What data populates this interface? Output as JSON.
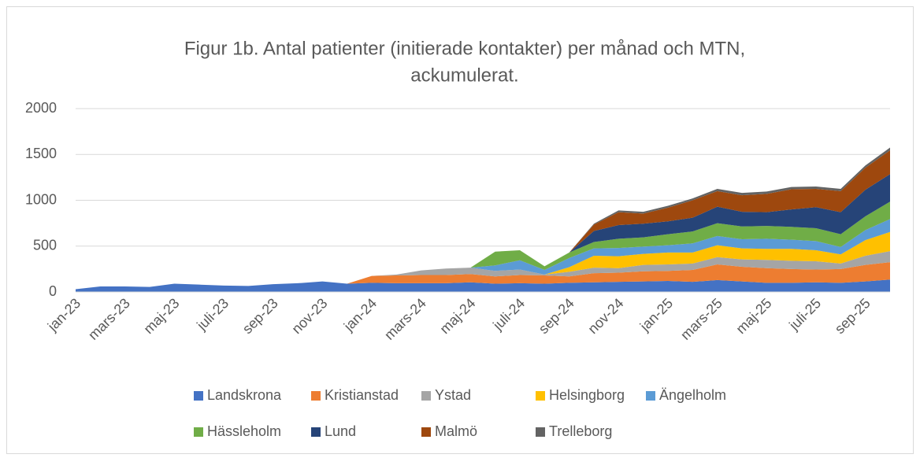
{
  "chart_data": {
    "type": "stacked_area",
    "title": [
      "Figur 1b. Antal patienter (initierade kontakter) per månad och MTN,",
      "ackumulerat."
    ],
    "categories": [
      "jan-23",
      null,
      "mars-23",
      null,
      "maj-23",
      null,
      "juli-23",
      null,
      "sep-23",
      null,
      "nov-23",
      null,
      "jan-24",
      null,
      "mars-24",
      null,
      "maj-24",
      null,
      "juli-24",
      null,
      "sep-24",
      null,
      "nov-24",
      null,
      "jan-25",
      null,
      "mars-25",
      null,
      "maj-25",
      null,
      "juli-25",
      null,
      "sep-25",
      null
    ],
    "series": [
      {
        "name": "Landskrona",
        "color": "#4472c4",
        "values": [
          30,
          60,
          60,
          55,
          90,
          80,
          70,
          65,
          85,
          95,
          115,
          90,
          100,
          95,
          95,
          95,
          105,
          90,
          95,
          90,
          100,
          105,
          110,
          115,
          120,
          110,
          130,
          115,
          100,
          100,
          105,
          100,
          115,
          135
        ]
      },
      {
        "name": "Kristianstad",
        "color": "#ed7d31",
        "values": [
          0,
          0,
          0,
          0,
          0,
          0,
          0,
          0,
          0,
          0,
          0,
          0,
          75,
          85,
          90,
          90,
          90,
          80,
          90,
          90,
          70,
          100,
          100,
          110,
          110,
          130,
          170,
          160,
          160,
          150,
          140,
          150,
          180,
          190
        ]
      },
      {
        "name": "Ystad",
        "color": "#a5a5a5",
        "values": [
          0,
          0,
          0,
          0,
          0,
          0,
          0,
          0,
          0,
          0,
          0,
          0,
          0,
          10,
          50,
          70,
          70,
          60,
          60,
          10,
          50,
          60,
          50,
          70,
          70,
          70,
          80,
          80,
          90,
          90,
          90,
          60,
          100,
          120
        ]
      },
      {
        "name": "Helsingborg",
        "color": "#ffc000",
        "values": [
          0,
          0,
          0,
          0,
          0,
          0,
          0,
          0,
          0,
          0,
          0,
          0,
          0,
          0,
          0,
          0,
          0,
          0,
          0,
          0,
          50,
          130,
          130,
          120,
          130,
          120,
          130,
          120,
          120,
          130,
          120,
          100,
          170,
          210
        ]
      },
      {
        "name": "Ängelholm",
        "color": "#5b9bd5",
        "values": [
          0,
          0,
          0,
          0,
          0,
          0,
          0,
          0,
          0,
          0,
          0,
          0,
          0,
          0,
          0,
          0,
          0,
          60,
          100,
          50,
          100,
          80,
          90,
          80,
          80,
          100,
          100,
          100,
          110,
          100,
          100,
          80,
          110,
          140
        ]
      },
      {
        "name": "Hässleholm",
        "color": "#70ad47",
        "values": [
          0,
          0,
          0,
          0,
          0,
          0,
          0,
          0,
          0,
          0,
          0,
          0,
          0,
          0,
          0,
          0,
          0,
          150,
          110,
          40,
          60,
          70,
          100,
          100,
          120,
          130,
          140,
          140,
          140,
          140,
          140,
          140,
          150,
          190
        ]
      },
      {
        "name": "Lund",
        "color": "#264478",
        "values": [
          0,
          0,
          0,
          0,
          0,
          0,
          0,
          0,
          0,
          0,
          0,
          0,
          0,
          0,
          0,
          0,
          0,
          0,
          0,
          0,
          0,
          120,
          150,
          150,
          140,
          150,
          180,
          160,
          150,
          190,
          230,
          240,
          290,
          300
        ]
      },
      {
        "name": "Malmö",
        "color": "#9e480e",
        "values": [
          0,
          0,
          0,
          0,
          0,
          0,
          0,
          0,
          0,
          0,
          0,
          0,
          0,
          0,
          0,
          0,
          0,
          0,
          0,
          0,
          0,
          70,
          140,
          110,
          150,
          190,
          170,
          180,
          200,
          220,
          200,
          230,
          240,
          260
        ]
      },
      {
        "name": "Trelleborg",
        "color": "#636363",
        "values": [
          0,
          0,
          0,
          0,
          0,
          0,
          0,
          0,
          0,
          0,
          0,
          0,
          0,
          0,
          0,
          0,
          0,
          0,
          0,
          0,
          0,
          10,
          20,
          20,
          20,
          20,
          25,
          25,
          25,
          25,
          25,
          25,
          25,
          30
        ]
      }
    ],
    "ylim": [
      0,
      2000
    ],
    "yticks": [
      0,
      500,
      1000,
      1500,
      2000
    ],
    "grid": true
  }
}
